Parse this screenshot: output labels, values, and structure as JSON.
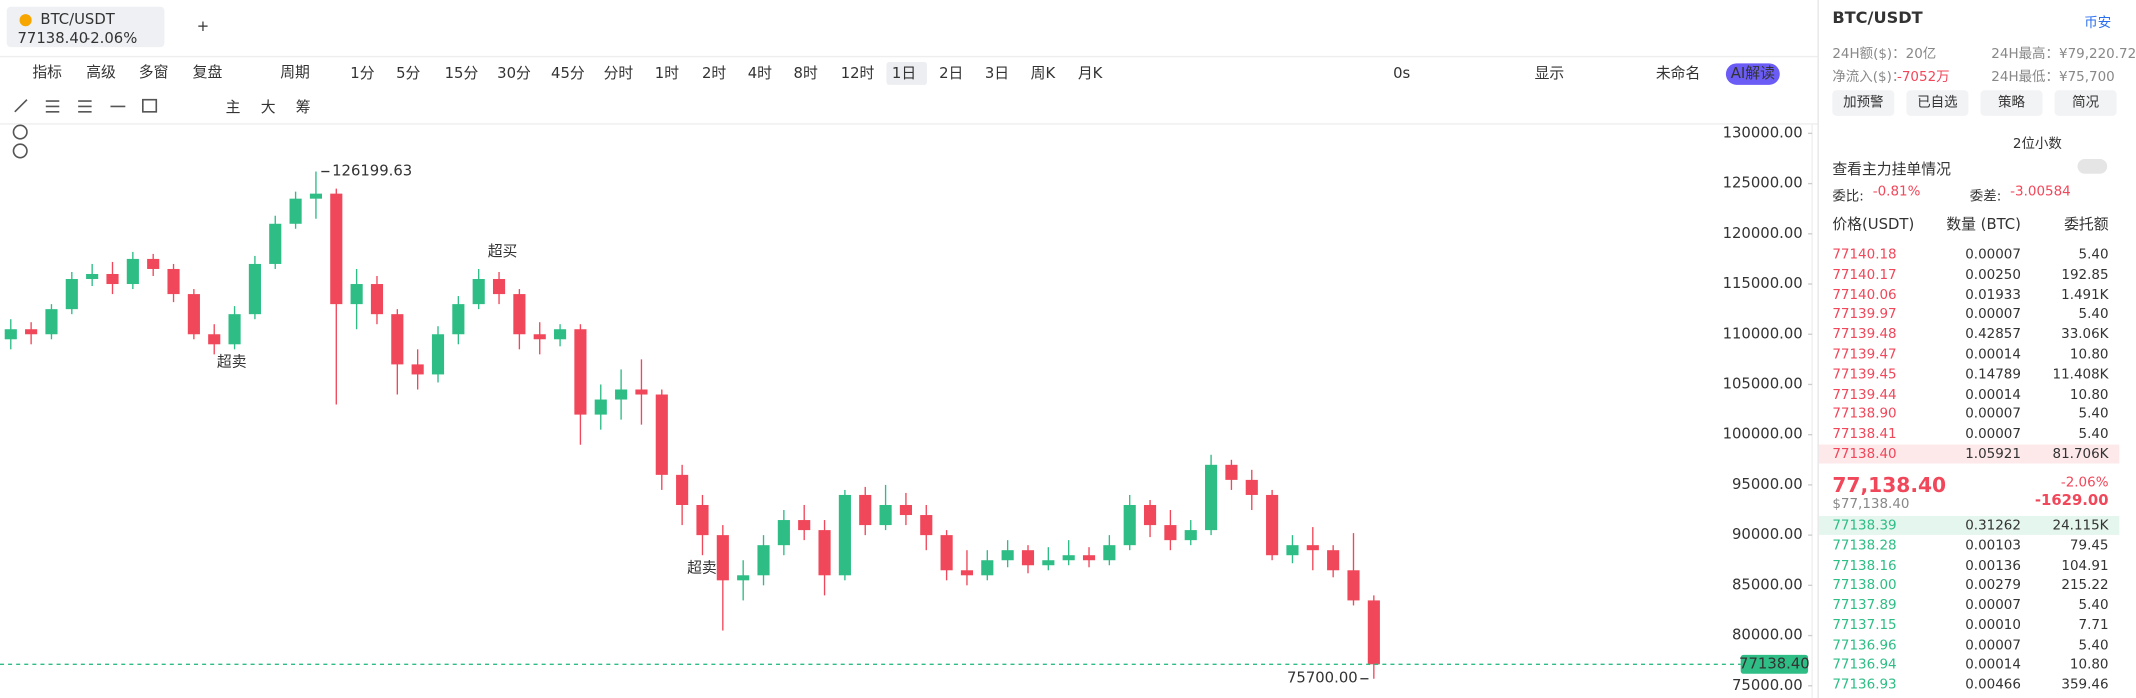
{
  "tab": {
    "symbol": "BTC/USDT",
    "price": "77138.40",
    "change": "-2.06%"
  },
  "toolbar": {
    "left": [
      "指标",
      "高级",
      "多窗",
      "复盘",
      "周期"
    ],
    "periods": [
      "1分",
      "5分",
      "15分",
      "30分",
      "45分",
      "分时",
      "1时",
      "2时",
      "4时",
      "8时",
      "12时",
      "1日",
      "2日",
      "3日",
      "周K",
      "月K"
    ],
    "active_period": "1日",
    "right": [
      "0s",
      "显示",
      "未命名",
      "AI解读"
    ]
  },
  "indicator_buttons": [
    "主",
    "大",
    "筹"
  ],
  "chart_data": {
    "type": "candlestick",
    "colors": {
      "up": "#2dbd85",
      "down": "#f0475a"
    },
    "candles": [
      [
        109500,
        111500,
        108500,
        110500
      ],
      [
        110500,
        111200,
        109000,
        110000
      ],
      [
        110000,
        113000,
        109500,
        112500
      ],
      [
        112500,
        116200,
        112000,
        115500
      ],
      [
        115500,
        117000,
        114800,
        116000
      ],
      [
        116000,
        117200,
        114000,
        115000
      ],
      [
        115000,
        118200,
        114500,
        117500
      ],
      [
        117500,
        118000,
        115800,
        116500
      ],
      [
        116500,
        117000,
        113200,
        114000
      ],
      [
        114000,
        114500,
        109500,
        110000
      ],
      [
        110000,
        111000,
        108000,
        109000
      ],
      [
        109000,
        112800,
        108500,
        112000
      ],
      [
        112000,
        117800,
        111500,
        117000
      ],
      [
        117000,
        121800,
        116500,
        121000
      ],
      [
        121000,
        124200,
        120500,
        123500
      ],
      [
        123500,
        126199.63,
        121500,
        124000
      ],
      [
        124000,
        124500,
        103000,
        113000
      ],
      [
        113000,
        116500,
        110500,
        115000
      ],
      [
        115000,
        115800,
        111000,
        112000
      ],
      [
        112000,
        112500,
        104000,
        107000
      ],
      [
        107000,
        108500,
        104500,
        106000
      ],
      [
        106000,
        110800,
        105200,
        110000
      ],
      [
        110000,
        113800,
        109000,
        113000
      ],
      [
        113000,
        116500,
        112500,
        115500
      ],
      [
        115500,
        116200,
        113000,
        114000
      ],
      [
        114000,
        114500,
        108500,
        110000
      ],
      [
        110000,
        111200,
        108000,
        109500
      ],
      [
        109500,
        111000,
        108800,
        110500
      ],
      [
        110500,
        111000,
        99000,
        102000
      ],
      [
        102000,
        105000,
        100500,
        103500
      ],
      [
        103500,
        106500,
        101500,
        104500
      ],
      [
        104500,
        107500,
        101000,
        104000
      ],
      [
        104000,
        104500,
        94500,
        96000
      ],
      [
        96000,
        97000,
        91000,
        93000
      ],
      [
        93000,
        94000,
        88000,
        90000
      ],
      [
        90000,
        91000,
        80500,
        85500
      ],
      [
        85500,
        87500,
        83500,
        86000
      ],
      [
        86000,
        90000,
        85000,
        89000
      ],
      [
        89000,
        92500,
        88000,
        91500
      ],
      [
        91500,
        93000,
        89500,
        90500
      ],
      [
        90500,
        91500,
        84000,
        86000
      ],
      [
        86000,
        94500,
        85500,
        94000
      ],
      [
        94000,
        94800,
        90000,
        91000
      ],
      [
        91000,
        95000,
        90500,
        93000
      ],
      [
        93000,
        94200,
        91000,
        92000
      ],
      [
        92000,
        93000,
        88500,
        90000
      ],
      [
        90000,
        90500,
        85500,
        86500
      ],
      [
        86500,
        88500,
        85000,
        86000
      ],
      [
        86000,
        88500,
        85500,
        87500
      ],
      [
        87500,
        89500,
        86800,
        88500
      ],
      [
        88500,
        89000,
        86200,
        87000
      ],
      [
        87000,
        88800,
        86500,
        87500
      ],
      [
        87500,
        89500,
        87000,
        88000
      ],
      [
        88000,
        88800,
        86800,
        87500
      ],
      [
        87500,
        90000,
        87000,
        89000
      ],
      [
        89000,
        94000,
        88500,
        93000
      ],
      [
        93000,
        93500,
        89800,
        91000
      ],
      [
        91000,
        92500,
        88500,
        89500
      ],
      [
        89500,
        91500,
        89000,
        90500
      ],
      [
        90500,
        98000,
        90000,
        97000
      ],
      [
        97000,
        97500,
        94500,
        95500
      ],
      [
        95500,
        96500,
        92500,
        94000
      ],
      [
        94000,
        94500,
        87500,
        88000
      ],
      [
        88000,
        90000,
        87200,
        89000
      ],
      [
        89000,
        90800,
        86500,
        88500
      ],
      [
        88500,
        89000,
        85800,
        86500
      ],
      [
        86500,
        90200,
        83000,
        83500
      ],
      [
        83500,
        84000,
        75700,
        77138.4
      ]
    ],
    "ylim": [
      75000,
      130000
    ],
    "yticks": [
      {
        "value": 75000,
        "label": "75000.00"
      },
      {
        "value": 80000,
        "label": "80000.00"
      },
      {
        "value": 85000,
        "label": "85000.00"
      },
      {
        "value": 90000,
        "label": "90000.00"
      },
      {
        "value": 95000,
        "label": "95000.00"
      },
      {
        "value": 100000,
        "label": "100000.00"
      },
      {
        "value": 105000,
        "label": "105000.00"
      },
      {
        "value": 110000,
        "label": "110000.00"
      },
      {
        "value": 115000,
        "label": "115000.00"
      },
      {
        "value": 120000,
        "label": "120000.00"
      },
      {
        "value": 125000,
        "label": "125000.00"
      },
      {
        "value": 130000,
        "label": "130000.00"
      }
    ],
    "grid": false,
    "max_label": "126199.63",
    "min_label": "75700.00",
    "last_price_label": "77138.40",
    "signals": [
      "超卖",
      "超买",
      "超卖"
    ]
  },
  "orderbook": {
    "symbol": "BTC/USDT",
    "exchange": "币安",
    "turnover": "24H额($)：20亿",
    "high": "24H最高：¥79,220.72",
    "inflow_label": "净流入($)：",
    "inflow": "-7052万",
    "low": "24H最低：¥75,700",
    "buttons": [
      "加预警",
      "已自选",
      "策略",
      "简况"
    ],
    "precision": "2位小数",
    "main_orders": "查看主力挂单情况",
    "ratio_label": "委比:",
    "ratio": "-0.81%",
    "diff_label": "委差:",
    "diff": "-3.00584",
    "headers": [
      "价格(USDT)",
      "数量 (BTC)",
      "委托额"
    ],
    "asks": [
      [
        "77140.18",
        "0.00007",
        "5.40"
      ],
      [
        "77140.17",
        "0.00250",
        "192.85"
      ],
      [
        "77140.06",
        "0.01933",
        "1.491K"
      ],
      [
        "77139.97",
        "0.00007",
        "5.40"
      ],
      [
        "77139.48",
        "0.42857",
        "33.06K"
      ],
      [
        "77139.47",
        "0.00014",
        "10.80"
      ],
      [
        "77139.45",
        "0.14789",
        "11.408K"
      ],
      [
        "77139.44",
        "0.00014",
        "10.80"
      ],
      [
        "77138.90",
        "0.00007",
        "5.40"
      ],
      [
        "77138.41",
        "0.00007",
        "5.40"
      ],
      [
        "77138.40",
        "1.05921",
        "81.706K"
      ]
    ],
    "mid": {
      "price": "77,138.40",
      "usd": "$77,138.40",
      "change": "-2.06%",
      "change_amount": "-1629.00"
    },
    "bids": [
      [
        "77138.39",
        "0.31262",
        "24.115K"
      ],
      [
        "77138.28",
        "0.00103",
        "79.45"
      ],
      [
        "77138.16",
        "0.00136",
        "104.91"
      ],
      [
        "77138.00",
        "0.00279",
        "215.22"
      ],
      [
        "77137.89",
        "0.00007",
        "5.40"
      ],
      [
        "77137.15",
        "0.00010",
        "7.71"
      ],
      [
        "77136.96",
        "0.00007",
        "5.40"
      ],
      [
        "77136.94",
        "0.00014",
        "10.80"
      ],
      [
        "77136.93",
        "0.00466",
        "359.46"
      ]
    ]
  }
}
